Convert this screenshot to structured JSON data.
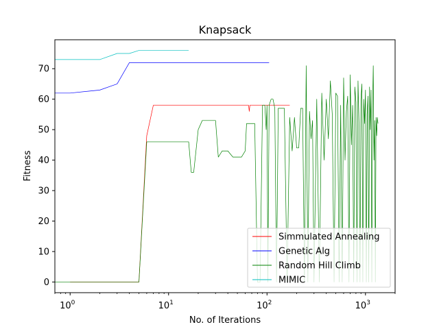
{
  "chart_data": {
    "type": "line",
    "title": "Knapsack",
    "xlabel": "No. of Iterations",
    "ylabel": "Fitness",
    "xscale": "log",
    "xlim": [
      0.7,
      2000
    ],
    "ylim": [
      -3.5,
      79.5
    ],
    "xticks": [
      {
        "value": 1,
        "label": "10",
        "exp": "0"
      },
      {
        "value": 10,
        "label": "10",
        "exp": "1"
      },
      {
        "value": 100,
        "label": "10",
        "exp": "2"
      },
      {
        "value": 1000,
        "label": "10",
        "exp": "3"
      }
    ],
    "yticks": [
      0,
      10,
      20,
      30,
      40,
      50,
      60,
      70
    ],
    "grid": false,
    "legend_position": "lower-right",
    "series": [
      {
        "name": "Simmulated Annealing",
        "color": "#ff0000",
        "x": [
          1,
          2,
          3,
          4,
          5,
          6,
          7,
          8,
          10,
          15,
          20,
          30,
          50,
          65,
          66,
          67,
          70,
          100,
          170
        ],
        "y": [
          0,
          0,
          0,
          0,
          0,
          48,
          58,
          58,
          58,
          58,
          58,
          58,
          58,
          58,
          56,
          58,
          58,
          58,
          58
        ]
      },
      {
        "name": "Genetic Alg",
        "color": "#0000ff",
        "x": [
          0.7,
          1,
          2,
          3,
          4,
          5,
          10,
          20,
          50,
          105
        ],
        "y": [
          62,
          62,
          63,
          65,
          72,
          72,
          72,
          72,
          72,
          72
        ]
      },
      {
        "name": "Random Hill Climb",
        "color": "#008000",
        "x": [
          0.7,
          1,
          2,
          3,
          4,
          5,
          6,
          7,
          8,
          10,
          12,
          14,
          16,
          17,
          18,
          20,
          22,
          25,
          28,
          30,
          32,
          35,
          38,
          40,
          45,
          50,
          55,
          60,
          62,
          65,
          70,
          75,
          80,
          85,
          90,
          95,
          98,
          100,
          102,
          105,
          110,
          115,
          120,
          125,
          130,
          135,
          140,
          145,
          150,
          160,
          170,
          180,
          190,
          200,
          210,
          220,
          230,
          240,
          250,
          260,
          270,
          280,
          290,
          300,
          320,
          340,
          360,
          380,
          400,
          420,
          440,
          460,
          480,
          500,
          520,
          540,
          560,
          580,
          600,
          620,
          640,
          660,
          680,
          700,
          720,
          740,
          760,
          780,
          800,
          820,
          840,
          860,
          880,
          900,
          920,
          940,
          960,
          980,
          1000,
          1020,
          1040,
          1060,
          1080,
          1100,
          1120,
          1140,
          1160,
          1180,
          1200,
          1220,
          1240,
          1260,
          1280,
          1300,
          1320,
          1340
        ],
        "y": [
          0,
          0,
          0,
          0,
          0,
          0,
          46,
          46,
          46,
          46,
          46,
          46,
          46,
          36,
          36,
          50,
          53,
          53,
          53,
          53,
          41,
          43,
          43,
          43,
          41,
          41,
          41,
          43,
          52,
          52,
          52,
          52,
          0,
          0,
          58,
          58,
          50,
          58,
          0,
          58,
          60,
          60,
          57,
          0,
          57,
          57,
          57,
          57,
          57,
          0,
          54,
          43,
          54,
          44,
          44,
          57,
          57,
          0,
          71,
          0,
          56,
          47,
          53,
          0,
          60,
          0,
          62,
          40,
          60,
          47,
          66,
          55,
          0,
          62,
          61,
          0,
          58,
          0,
          67,
          40,
          56,
          61,
          0,
          68,
          45,
          58,
          0,
          64,
          59,
          0,
          66,
          52,
          0,
          60,
          65,
          0,
          60,
          52,
          63,
          0,
          55,
          61,
          0,
          64,
          50,
          63,
          0,
          57,
          71,
          40,
          53,
          0,
          54,
          48,
          54,
          52
        ]
      },
      {
        "name": "MIMIC",
        "color": "#00bfbf",
        "x": [
          0.7,
          1,
          2,
          3,
          4,
          5,
          8,
          10,
          16
        ],
        "y": [
          73,
          73,
          73,
          75,
          75,
          76,
          76,
          76,
          76
        ]
      }
    ]
  }
}
